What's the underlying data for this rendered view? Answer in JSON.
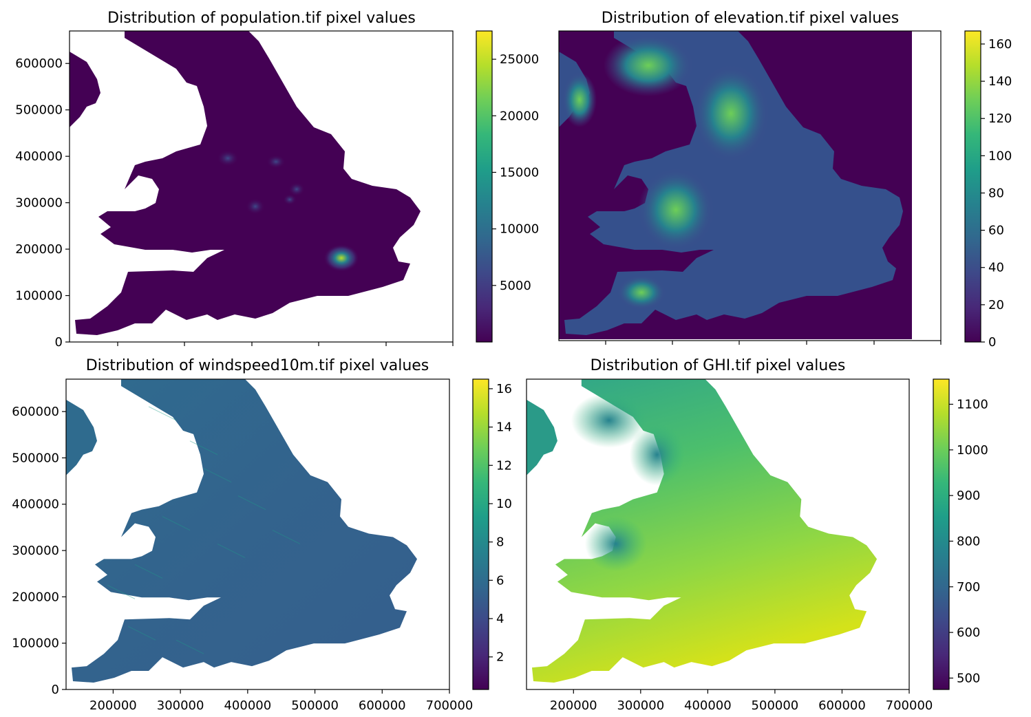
{
  "colormap": {
    "name": "viridis",
    "stops": [
      "#440154",
      "#482878",
      "#3e4989",
      "#31688e",
      "#26828e",
      "#1f9e89",
      "#35b779",
      "#6ece58",
      "#b5de2b",
      "#fde725"
    ]
  },
  "chart_data": [
    {
      "type": "heatmap",
      "title": "Distribution of population.tif pixel values",
      "x_ticks": [],
      "y_ticks": [
        "0",
        "100000",
        "200000",
        "300000",
        "400000",
        "500000",
        "600000"
      ],
      "y_tick_values": [
        0,
        100000,
        200000,
        300000,
        400000,
        500000,
        600000
      ],
      "ylim": [
        0,
        670000
      ],
      "colorbar": {
        "range": [
          0,
          27500
        ],
        "tick_values": [
          5000,
          10000,
          15000,
          20000,
          25000
        ],
        "tick_labels": [
          "5000",
          "10000",
          "15000",
          "20000",
          "25000"
        ]
      }
    },
    {
      "type": "heatmap",
      "title": "Distribution of elevation.tif pixel values",
      "x_ticks": [],
      "y_ticks": [],
      "colorbar": {
        "range": [
          0,
          167
        ],
        "tick_values": [
          0,
          20,
          40,
          60,
          80,
          100,
          120,
          140,
          160
        ],
        "tick_labels": [
          "0",
          "20",
          "40",
          "60",
          "80",
          "100",
          "120",
          "140",
          "160"
        ]
      }
    },
    {
      "type": "heatmap",
      "title": "Distribution of windspeed10m.tif pixel values",
      "x_ticks": [
        "200000",
        "300000",
        "400000",
        "500000",
        "600000",
        "700000"
      ],
      "x_tick_values": [
        200000,
        300000,
        400000,
        500000,
        600000,
        700000
      ],
      "xlim": [
        130000,
        700000
      ],
      "y_ticks": [
        "0",
        "100000",
        "200000",
        "300000",
        "400000",
        "500000",
        "600000"
      ],
      "y_tick_values": [
        0,
        100000,
        200000,
        300000,
        400000,
        500000,
        600000
      ],
      "ylim": [
        0,
        670000
      ],
      "colorbar": {
        "range": [
          0.3,
          16.5
        ],
        "tick_values": [
          2,
          4,
          6,
          8,
          10,
          12,
          14,
          16
        ],
        "tick_labels": [
          "2",
          "4",
          "6",
          "8",
          "10",
          "12",
          "14",
          "16"
        ]
      }
    },
    {
      "type": "heatmap",
      "title": "Distribution of GHI.tif pixel values",
      "x_ticks": [
        "200000",
        "300000",
        "400000",
        "500000",
        "600000",
        "700000"
      ],
      "x_tick_values": [
        200000,
        300000,
        400000,
        500000,
        600000,
        700000
      ],
      "xlim": [
        130000,
        700000
      ],
      "y_ticks": [],
      "colorbar": {
        "range": [
          475,
          1155
        ],
        "tick_values": [
          500,
          600,
          700,
          800,
          900,
          1000,
          1100
        ],
        "tick_labels": [
          "500",
          "600",
          "700",
          "800",
          "900",
          "1000",
          "1100"
        ]
      }
    }
  ]
}
